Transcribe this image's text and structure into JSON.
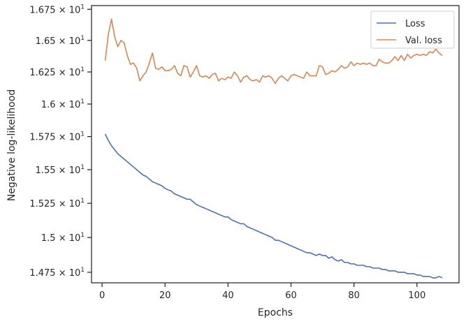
{
  "chart_data": {
    "type": "line",
    "xlabel": "Epochs",
    "ylabel": "Negative log-likelihood",
    "xlim": [
      -3.35,
      113.35
    ],
    "ylim": [
      14.675,
      16.78
    ],
    "y_scale": "log",
    "x_ticks": [
      0,
      20,
      40,
      60,
      80,
      100
    ],
    "x_tick_labels": [
      "0",
      "20",
      "40",
      "60",
      "80",
      "100"
    ],
    "y_ticks": [
      14.75,
      15.0,
      15.25,
      15.5,
      15.75,
      16.0,
      16.25,
      16.5,
      16.75
    ],
    "y_tick_labels": [
      {
        "mantissa": "1.475",
        "base": "10",
        "exp": "1"
      },
      {
        "mantissa": "1.5",
        "base": "10",
        "exp": "1"
      },
      {
        "mantissa": "1.525",
        "base": "10",
        "exp": "1"
      },
      {
        "mantissa": "1.55",
        "base": "10",
        "exp": "1"
      },
      {
        "mantissa": "1.575",
        "base": "10",
        "exp": "1"
      },
      {
        "mantissa": "1.6",
        "base": "10",
        "exp": "1"
      },
      {
        "mantissa": "1.625",
        "base": "10",
        "exp": "1"
      },
      {
        "mantissa": "1.65",
        "base": "10",
        "exp": "1"
      },
      {
        "mantissa": "1.675",
        "base": "10",
        "exp": "1"
      }
    ],
    "grid": false,
    "legend_position": "top-right",
    "series": [
      {
        "name": "Loss",
        "color": "#4c72b0",
        "x_start": 1,
        "values": [
          15.77,
          15.72,
          15.68,
          15.65,
          15.62,
          15.6,
          15.58,
          15.56,
          15.54,
          15.52,
          15.5,
          15.48,
          15.46,
          15.45,
          15.43,
          15.41,
          15.4,
          15.39,
          15.38,
          15.36,
          15.35,
          15.34,
          15.32,
          15.31,
          15.3,
          15.29,
          15.28,
          15.28,
          15.26,
          15.24,
          15.23,
          15.22,
          15.21,
          15.2,
          15.19,
          15.18,
          15.17,
          15.16,
          15.15,
          15.15,
          15.13,
          15.12,
          15.11,
          15.1,
          15.1,
          15.08,
          15.07,
          15.06,
          15.05,
          15.04,
          15.03,
          15.02,
          15.01,
          15.0,
          14.98,
          14.98,
          14.97,
          14.96,
          14.95,
          14.94,
          14.93,
          14.92,
          14.91,
          14.9,
          14.89,
          14.89,
          14.88,
          14.87,
          14.88,
          14.87,
          14.87,
          14.85,
          14.86,
          14.84,
          14.83,
          14.84,
          14.82,
          14.82,
          14.81,
          14.81,
          14.8,
          14.8,
          14.8,
          14.79,
          14.79,
          14.78,
          14.78,
          14.78,
          14.77,
          14.77,
          14.76,
          14.76,
          14.76,
          14.75,
          14.75,
          14.75,
          14.74,
          14.74,
          14.74,
          14.73,
          14.73,
          14.72,
          14.72,
          14.72,
          14.71,
          14.71,
          14.72,
          14.71
        ]
      },
      {
        "name": "Val. loss",
        "color": "#dd8452",
        "x_start": 1,
        "values": [
          16.34,
          16.55,
          16.67,
          16.53,
          16.45,
          16.5,
          16.48,
          16.38,
          16.31,
          16.32,
          16.28,
          16.18,
          16.22,
          16.25,
          16.32,
          16.4,
          16.28,
          16.27,
          16.29,
          16.26,
          16.26,
          16.27,
          16.3,
          16.24,
          16.22,
          16.3,
          16.29,
          16.21,
          16.25,
          16.3,
          16.22,
          16.21,
          16.22,
          16.2,
          16.23,
          16.24,
          16.18,
          16.2,
          16.19,
          16.21,
          16.2,
          16.25,
          16.22,
          16.17,
          16.21,
          16.22,
          16.19,
          16.18,
          16.19,
          16.17,
          16.22,
          16.21,
          16.22,
          16.2,
          16.16,
          16.2,
          16.22,
          16.2,
          16.18,
          16.22,
          16.23,
          16.22,
          16.21,
          16.2,
          16.25,
          16.22,
          16.22,
          16.22,
          16.3,
          16.29,
          16.23,
          16.24,
          16.26,
          16.25,
          16.27,
          16.3,
          16.28,
          16.29,
          16.33,
          16.3,
          16.32,
          16.31,
          16.32,
          16.31,
          16.32,
          16.3,
          16.3,
          16.35,
          16.33,
          16.32,
          16.32,
          16.34,
          16.37,
          16.34,
          16.38,
          16.34,
          16.39,
          16.36,
          16.38,
          16.39,
          16.38,
          16.39,
          16.38,
          16.41,
          16.4,
          16.43,
          16.4,
          16.38
        ]
      }
    ]
  }
}
